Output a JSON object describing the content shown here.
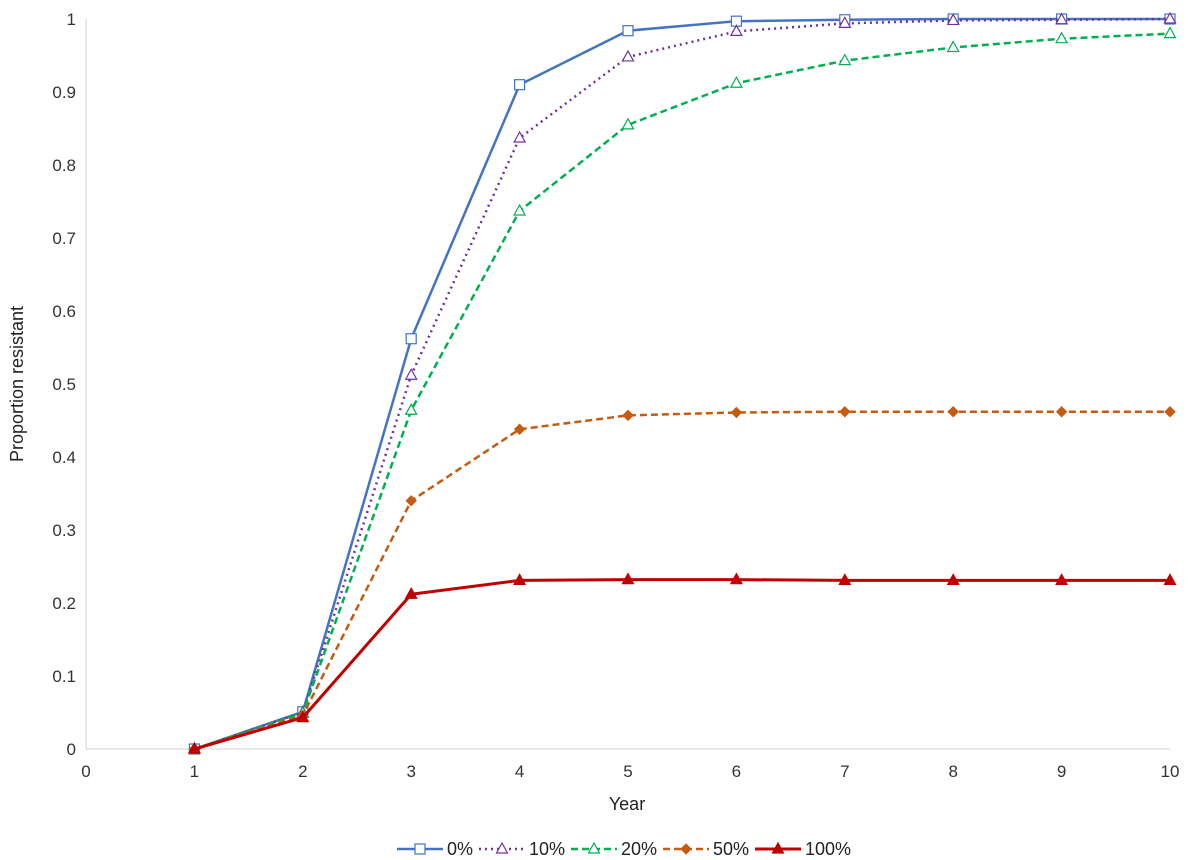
{
  "chart_data": {
    "type": "line",
    "xlabel": "Year",
    "ylabel": "Proportion resistant",
    "xlim": [
      0,
      10
    ],
    "ylim": [
      0,
      1
    ],
    "x_ticks": [
      "0",
      "1",
      "2",
      "3",
      "4",
      "5",
      "6",
      "7",
      "8",
      "9",
      "10"
    ],
    "y_ticks": [
      "0",
      "0.1",
      "0.2",
      "0.3",
      "0.4",
      "0.5",
      "0.6",
      "0.7",
      "0.8",
      "0.9",
      "1"
    ],
    "grid": false,
    "legend_position": "bottom",
    "x": [
      1,
      2,
      3,
      4,
      5,
      6,
      7,
      8,
      9,
      10
    ],
    "series": [
      {
        "name": "0%",
        "color": "#4472C4",
        "line_style": "solid",
        "marker": "square-open",
        "values": [
          0,
          0.051,
          0.562,
          0.91,
          0.984,
          0.997,
          0.999,
          1.0,
          1.0,
          1.0
        ]
      },
      {
        "name": "10%",
        "color": "#7030A0",
        "line_style": "dotted",
        "marker": "triangle-open",
        "values": [
          0,
          0.05,
          0.512,
          0.837,
          0.948,
          0.983,
          0.994,
          0.998,
          0.999,
          1.0
        ]
      },
      {
        "name": "20%",
        "color": "#00B050",
        "line_style": "dashed",
        "marker": "triangle-open",
        "values": [
          0,
          0.049,
          0.464,
          0.737,
          0.855,
          0.912,
          0.943,
          0.961,
          0.973,
          0.98
        ]
      },
      {
        "name": "50%",
        "color": "#C55A11",
        "line_style": "dashed",
        "marker": "diamond",
        "values": [
          0,
          0.046,
          0.34,
          0.438,
          0.457,
          0.461,
          0.462,
          0.462,
          0.462,
          0.462
        ]
      },
      {
        "name": "100%",
        "color": "#C00000",
        "line_style": "solid",
        "marker": "triangle",
        "values": [
          0,
          0.043,
          0.212,
          0.231,
          0.232,
          0.232,
          0.231,
          0.231,
          0.231,
          0.231
        ]
      }
    ]
  }
}
